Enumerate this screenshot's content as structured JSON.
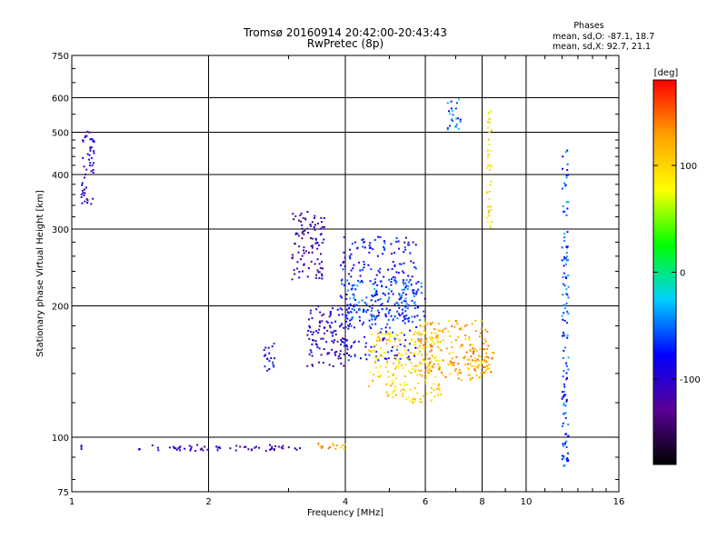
{
  "chart_data": {
    "type": "scatter",
    "title": "Tromsø 20160914 20:42:00-20:43:43",
    "subtitle": "RwPretec (8p)",
    "xlabel": "Frequency [MHz]",
    "ylabel": "Stationary phase Virtual Height [km]",
    "x_scale": "log",
    "y_scale": "log",
    "xlim": [
      1,
      16
    ],
    "ylim": [
      75,
      750
    ],
    "x_ticks": [
      1,
      2,
      4,
      6,
      8,
      10,
      16
    ],
    "y_ticks": [
      75,
      100,
      200,
      300,
      400,
      500,
      600,
      750
    ],
    "grid": true,
    "phase_info": {
      "heading": "Phases",
      "line_o": "mean, sd,O: -87.1, 18.7",
      "line_x": "mean, sd,X:  92.7, 21.1"
    },
    "colorbar": {
      "label": "[deg]",
      "range": [
        -180,
        180
      ],
      "ticks": [
        -100,
        0,
        100
      ],
      "colors": [
        "#000000",
        "#5a0096",
        "#0000ff",
        "#00d0ff",
        "#00ff00",
        "#ffff00",
        "#ffa000",
        "#ff0000"
      ]
    },
    "clusters": [
      {
        "x": [
          1.05,
          1.05
        ],
        "y": [
          93,
          96
        ],
        "phase": -115
      },
      {
        "x": [
          1.4,
          3.25
        ],
        "y": [
          93,
          96
        ],
        "phase": -110
      },
      {
        "x": [
          3.3,
          4.0
        ],
        "y": [
          94,
          97
        ],
        "phase": 120
      },
      {
        "x": [
          1.05,
          1.12
        ],
        "y": [
          340,
          520
        ],
        "phase": -100
      },
      {
        "x": [
          2.65,
          2.8
        ],
        "y": [
          140,
          165
        ],
        "phase": -90
      },
      {
        "x": [
          3.05,
          3.6
        ],
        "y": [
          230,
          330
        ],
        "phase": -115
      },
      {
        "x": [
          3.3,
          4.1
        ],
        "y": [
          145,
          200
        ],
        "phase": -100
      },
      {
        "x": [
          3.9,
          5.8
        ],
        "y": [
          150,
          290
        ],
        "phase": -80
      },
      {
        "x": [
          4.0,
          6.0
        ],
        "y": [
          185,
          230
        ],
        "phase": -60
      },
      {
        "x": [
          4.5,
          6.5
        ],
        "y": [
          120,
          175
        ],
        "phase": 100
      },
      {
        "x": [
          5.8,
          8.3
        ],
        "y": [
          135,
          185
        ],
        "phase": 120
      },
      {
        "x": [
          7.4,
          8.5
        ],
        "y": [
          140,
          160
        ],
        "phase": 125
      },
      {
        "x": [
          8.2,
          8.4
        ],
        "y": [
          300,
          560
        ],
        "phase": 90
      },
      {
        "x": [
          6.7,
          7.2
        ],
        "y": [
          500,
          600
        ],
        "phase": -50
      },
      {
        "x": [
          12.0,
          12.4
        ],
        "y": [
          85,
          460
        ],
        "phase": -60
      }
    ]
  }
}
